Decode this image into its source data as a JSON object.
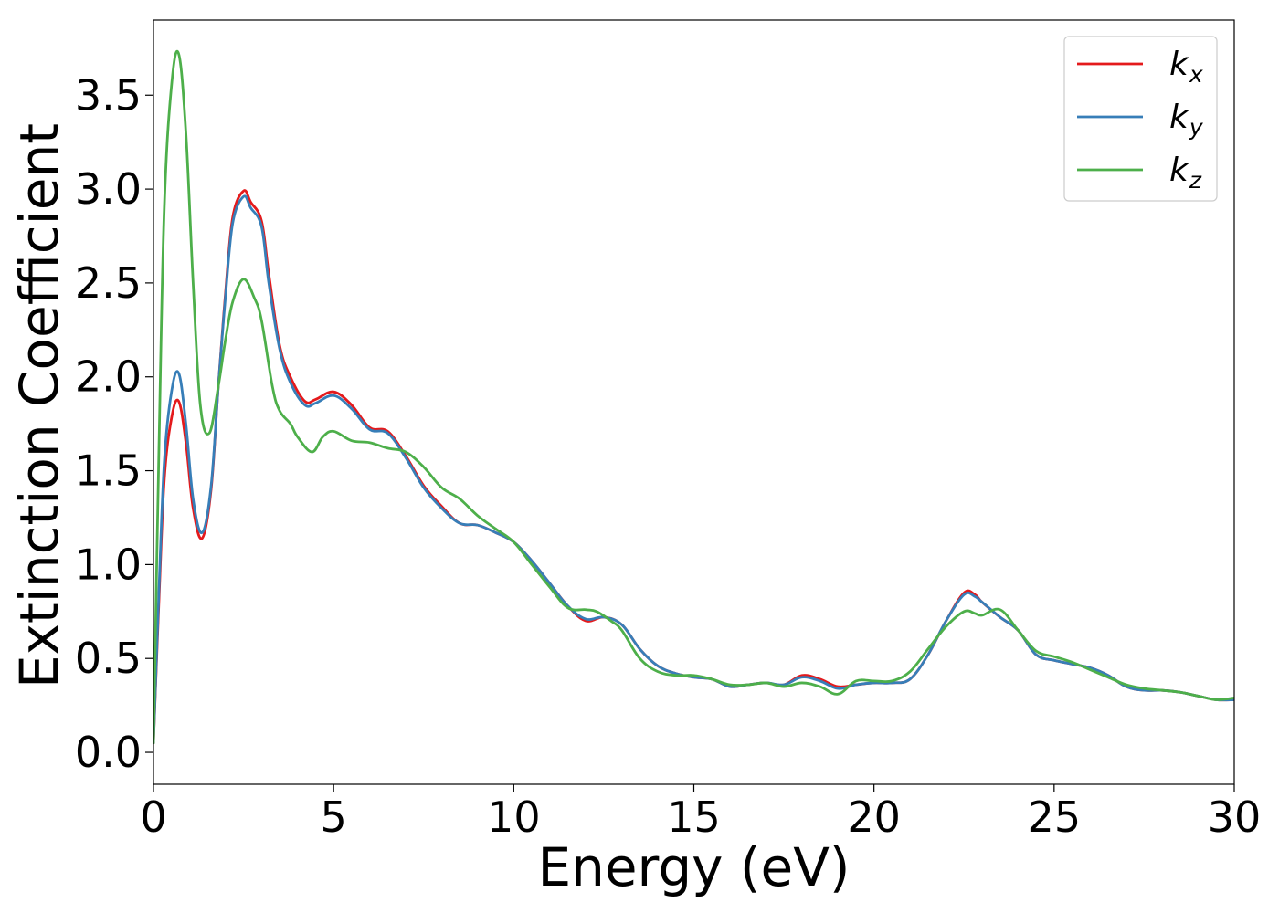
{
  "chart_data": {
    "type": "line",
    "title": "",
    "xlabel": "Energy (eV)",
    "ylabel": "Extinction Coefficient",
    "xlim": [
      0,
      30
    ],
    "ylim": [
      -0.17,
      3.9
    ],
    "xticks": [
      0,
      5,
      10,
      15,
      20,
      25,
      30
    ],
    "xtick_labels": [
      "0",
      "5",
      "10",
      "15",
      "20",
      "25",
      "30"
    ],
    "yticks": [
      0.0,
      0.5,
      1.0,
      1.5,
      2.0,
      2.5,
      3.0,
      3.5
    ],
    "ytick_labels": [
      "0.0",
      "0.5",
      "1.0",
      "1.5",
      "2.0",
      "2.5",
      "3.0",
      "3.5"
    ],
    "grid": false,
    "legend_position": "top-right",
    "series": [
      {
        "name": "k_x",
        "legend_base": "k",
        "legend_sub": "x",
        "color": "#e41a1c",
        "x": [
          0,
          0.15,
          0.3,
          0.5,
          0.7,
          0.9,
          1.1,
          1.35,
          1.6,
          1.8,
          2.0,
          2.2,
          2.5,
          2.7,
          3.0,
          3.2,
          3.5,
          3.8,
          4.2,
          4.5,
          5.0,
          5.5,
          6.0,
          6.5,
          7.0,
          7.5,
          8.0,
          8.5,
          9.0,
          9.5,
          10.0,
          10.5,
          11.0,
          11.5,
          12.0,
          12.5,
          13.0,
          13.5,
          14.0,
          14.5,
          15.0,
          15.5,
          16.0,
          16.5,
          17.0,
          17.5,
          18.0,
          18.5,
          19.0,
          19.5,
          20.0,
          20.5,
          21.0,
          21.5,
          22.0,
          22.5,
          22.8,
          23.0,
          23.5,
          24.0,
          24.5,
          25.0,
          25.5,
          26.0,
          26.5,
          27.0,
          27.5,
          28.0,
          28.5,
          29.0,
          29.5,
          30.0
        ],
        "y": [
          0.05,
          0.8,
          1.45,
          1.78,
          1.87,
          1.65,
          1.3,
          1.14,
          1.4,
          1.95,
          2.45,
          2.85,
          2.99,
          2.93,
          2.83,
          2.55,
          2.17,
          2.0,
          1.87,
          1.88,
          1.92,
          1.85,
          1.73,
          1.71,
          1.58,
          1.42,
          1.31,
          1.22,
          1.21,
          1.17,
          1.12,
          1.02,
          0.9,
          0.78,
          0.7,
          0.72,
          0.68,
          0.55,
          0.46,
          0.42,
          0.4,
          0.39,
          0.35,
          0.36,
          0.37,
          0.36,
          0.41,
          0.39,
          0.35,
          0.36,
          0.37,
          0.37,
          0.39,
          0.52,
          0.7,
          0.85,
          0.84,
          0.8,
          0.72,
          0.65,
          0.52,
          0.49,
          0.47,
          0.45,
          0.41,
          0.35,
          0.33,
          0.33,
          0.32,
          0.3,
          0.28,
          0.28
        ]
      },
      {
        "name": "k_y",
        "legend_base": "k",
        "legend_sub": "y",
        "color": "#377eb8",
        "x": [
          0,
          0.15,
          0.3,
          0.5,
          0.7,
          0.9,
          1.1,
          1.35,
          1.6,
          1.8,
          2.0,
          2.2,
          2.5,
          2.7,
          3.0,
          3.2,
          3.5,
          3.8,
          4.2,
          4.5,
          5.0,
          5.5,
          6.0,
          6.5,
          7.0,
          7.5,
          8.0,
          8.5,
          9.0,
          9.5,
          10.0,
          10.5,
          11.0,
          11.5,
          12.0,
          12.5,
          13.0,
          13.5,
          14.0,
          14.5,
          15.0,
          15.5,
          16.0,
          16.5,
          17.0,
          17.5,
          18.0,
          18.5,
          19.0,
          19.5,
          20.0,
          20.5,
          21.0,
          21.5,
          22.0,
          22.5,
          22.8,
          23.0,
          23.5,
          24.0,
          24.5,
          25.0,
          25.5,
          26.0,
          26.5,
          27.0,
          27.5,
          28.0,
          28.5,
          29.0,
          29.5,
          30.0
        ],
        "y": [
          0.05,
          0.85,
          1.55,
          1.92,
          2.02,
          1.75,
          1.35,
          1.17,
          1.42,
          1.95,
          2.43,
          2.82,
          2.96,
          2.9,
          2.8,
          2.5,
          2.15,
          1.97,
          1.85,
          1.86,
          1.9,
          1.83,
          1.72,
          1.7,
          1.57,
          1.41,
          1.3,
          1.22,
          1.21,
          1.17,
          1.12,
          1.02,
          0.9,
          0.78,
          0.71,
          0.72,
          0.68,
          0.55,
          0.46,
          0.42,
          0.4,
          0.39,
          0.35,
          0.36,
          0.37,
          0.36,
          0.4,
          0.38,
          0.34,
          0.36,
          0.37,
          0.37,
          0.39,
          0.52,
          0.7,
          0.84,
          0.83,
          0.8,
          0.72,
          0.65,
          0.52,
          0.49,
          0.47,
          0.45,
          0.41,
          0.35,
          0.33,
          0.33,
          0.32,
          0.3,
          0.28,
          0.28
        ]
      },
      {
        "name": "k_z",
        "legend_base": "k",
        "legend_sub": "z",
        "color": "#4daf4a",
        "x": [
          0,
          0.15,
          0.3,
          0.5,
          0.7,
          0.9,
          1.1,
          1.3,
          1.55,
          1.8,
          2.0,
          2.2,
          2.5,
          2.8,
          3.0,
          3.3,
          3.5,
          3.8,
          4.0,
          4.4,
          4.7,
          5.0,
          5.5,
          6.0,
          6.5,
          7.0,
          7.5,
          8.0,
          8.5,
          9.0,
          9.5,
          10.0,
          10.5,
          11.0,
          11.5,
          12.0,
          12.3,
          12.7,
          13.0,
          13.5,
          14.0,
          14.5,
          15.0,
          15.5,
          16.0,
          16.5,
          17.0,
          17.5,
          18.0,
          18.5,
          19.0,
          19.5,
          20.0,
          20.5,
          21.0,
          21.5,
          22.0,
          22.5,
          22.8,
          23.0,
          23.5,
          24.0,
          24.5,
          25.0,
          25.5,
          26.0,
          26.5,
          27.0,
          27.5,
          28.0,
          28.5,
          29.0,
          29.5,
          30.0
        ],
        "y": [
          0.05,
          1.6,
          2.9,
          3.55,
          3.72,
          3.3,
          2.5,
          1.85,
          1.7,
          1.95,
          2.2,
          2.4,
          2.52,
          2.42,
          2.3,
          1.95,
          1.82,
          1.75,
          1.68,
          1.6,
          1.68,
          1.71,
          1.66,
          1.65,
          1.62,
          1.6,
          1.52,
          1.41,
          1.35,
          1.26,
          1.19,
          1.12,
          1.0,
          0.88,
          0.77,
          0.76,
          0.75,
          0.7,
          0.65,
          0.5,
          0.43,
          0.41,
          0.41,
          0.39,
          0.36,
          0.36,
          0.37,
          0.35,
          0.37,
          0.35,
          0.31,
          0.38,
          0.38,
          0.38,
          0.43,
          0.55,
          0.67,
          0.75,
          0.74,
          0.73,
          0.76,
          0.65,
          0.54,
          0.51,
          0.48,
          0.44,
          0.4,
          0.36,
          0.34,
          0.33,
          0.32,
          0.3,
          0.28,
          0.29
        ]
      }
    ]
  }
}
